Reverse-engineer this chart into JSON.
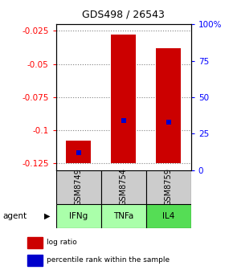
{
  "title": "GDS498 / 26543",
  "samples": [
    "GSM8749",
    "GSM8754",
    "GSM8759"
  ],
  "agents": [
    "IFNg",
    "TNFa",
    "IL4"
  ],
  "log_ratio_tops": [
    -0.108,
    -0.028,
    -0.038
  ],
  "log_ratio_floor": -0.125,
  "percentile_ranks": [
    0.12,
    0.34,
    0.33
  ],
  "ylim_left": [
    -0.13,
    -0.02
  ],
  "yticks_left": [
    -0.125,
    -0.1,
    -0.075,
    -0.05,
    -0.025
  ],
  "ytick_labels_left": [
    "-0.125",
    "-0.1",
    "-0.075",
    "-0.05",
    "-0.025"
  ],
  "ylim_right": [
    0.0,
    1.0
  ],
  "yticks_right": [
    0.0,
    0.25,
    0.5,
    0.75,
    1.0
  ],
  "ytick_labels_right": [
    "0",
    "25",
    "50",
    "75",
    "100%"
  ],
  "bar_color": "#cc0000",
  "percentile_color": "#0000cc",
  "sample_box_color": "#cccccc",
  "agent_box_colors": [
    "#aaffaa",
    "#aaffaa",
    "#55dd55"
  ],
  "legend_log_ratio": "log ratio",
  "legend_percentile": "percentile rank within the sample"
}
